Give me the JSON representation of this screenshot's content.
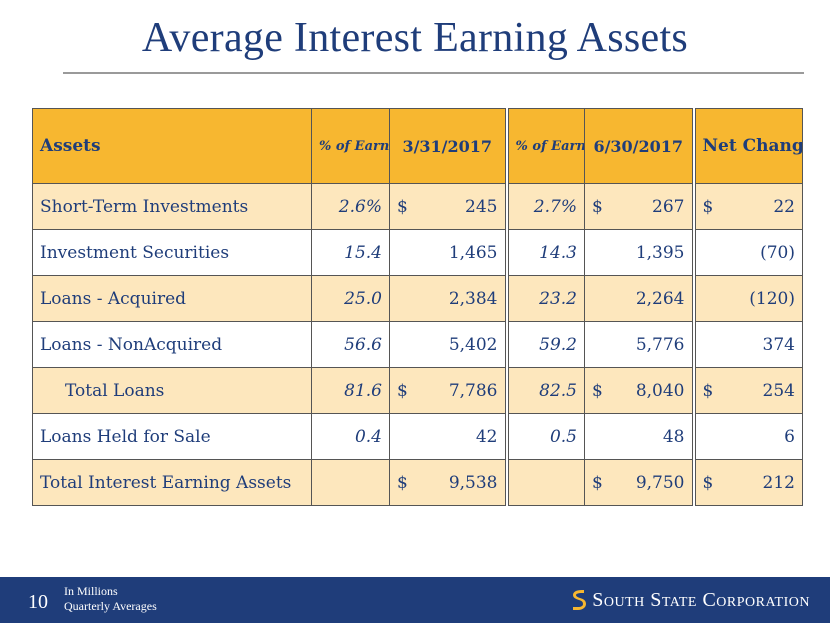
{
  "slide": {
    "title": "Average Interest Earning Assets",
    "page_number": "10",
    "notes": [
      "In Millions",
      "Quarterly Averages"
    ],
    "brand": "South State Corporation",
    "colors": {
      "navy": "#1f3d7a",
      "gold": "#f7b730",
      "band": "#fde7bd"
    }
  },
  "table": {
    "headers": {
      "assets": "Assets",
      "pct1": "% of Earning Assets",
      "date1": "3/31/2017",
      "pct2": "% of Earning Assets",
      "date2": "6/30/2017",
      "net": "Net Change"
    },
    "rows": [
      {
        "label": "Short-Term Investments",
        "pct1": "2.6%",
        "sign1": "$",
        "val1": "245",
        "pct2": "2.7%",
        "sign2": "$",
        "val2": "267",
        "sign3": "$",
        "net": "22"
      },
      {
        "label": "Investment Securities",
        "pct1": "15.4",
        "sign1": "",
        "val1": "1,465",
        "pct2": "14.3",
        "sign2": "",
        "val2": "1,395",
        "sign3": "",
        "net": "(70)"
      },
      {
        "label": "Loans - Acquired",
        "pct1": "25.0",
        "sign1": "",
        "val1": "2,384",
        "pct2": "23.2",
        "sign2": "",
        "val2": "2,264",
        "sign3": "",
        "net": "(120)"
      },
      {
        "label": "Loans - NonAcquired",
        "pct1": "56.6",
        "sign1": "",
        "val1": "5,402",
        "pct2": "59.2",
        "sign2": "",
        "val2": "5,776",
        "sign3": "",
        "net": "374"
      },
      {
        "label": "Total Loans",
        "pct1": "81.6",
        "sign1": "$",
        "val1": "7,786",
        "pct2": "82.5",
        "sign2": "$",
        "val2": "8,040",
        "sign3": "$",
        "net": "254"
      },
      {
        "label": "Loans Held for Sale",
        "pct1": "0.4",
        "sign1": "",
        "val1": "42",
        "pct2": "0.5",
        "sign2": "",
        "val2": "48",
        "sign3": "",
        "net": "6"
      },
      {
        "label": "Total Interest Earning Assets",
        "pct1": "",
        "sign1": "$",
        "val1": "9,538",
        "pct2": "",
        "sign2": "$",
        "val2": "9,750",
        "sign3": "$",
        "net": "212"
      }
    ]
  }
}
